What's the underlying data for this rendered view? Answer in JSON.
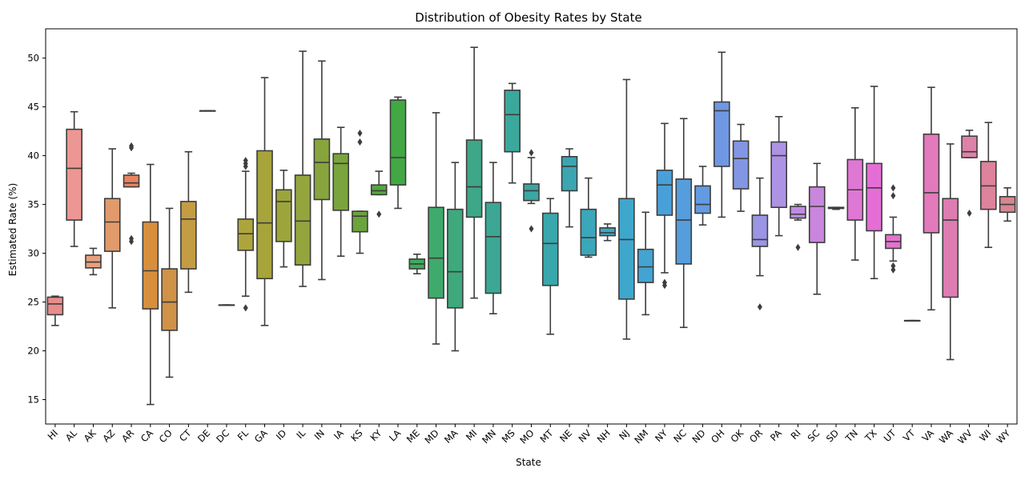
{
  "chart_data": {
    "type": "box",
    "title": "Distribution of Obesity Rates by State",
    "xlabel": "State",
    "ylabel": "Estimated Rate (%)",
    "ylim": [
      12.5,
      53
    ],
    "yticks": [
      15,
      20,
      25,
      30,
      35,
      40,
      45,
      50
    ],
    "grid": false,
    "categories": [
      "HI",
      "AL",
      "AK",
      "AZ",
      "AR",
      "CA",
      "CO",
      "CT",
      "DE",
      "DC",
      "FL",
      "GA",
      "ID",
      "IL",
      "IN",
      "IA",
      "KS",
      "KY",
      "LA",
      "ME",
      "MD",
      "MA",
      "MI",
      "MN",
      "MS",
      "MO",
      "MT",
      "NE",
      "NV",
      "NH",
      "NJ",
      "NM",
      "NY",
      "NC",
      "ND",
      "OH",
      "OK",
      "OR",
      "PA",
      "RI",
      "SC",
      "SD",
      "TN",
      "TX",
      "UT",
      "VT",
      "VA",
      "WA",
      "WV",
      "WI",
      "WY"
    ],
    "colors": [
      "#e98d8c",
      "#ec9793",
      "#e7a07d",
      "#e19b6b",
      "#e8845f",
      "#d88f3c",
      "#cf9247",
      "#c49c44",
      "#bea141",
      "#b6a33c",
      "#aea53a",
      "#a6a43b",
      "#9ca53b",
      "#93a53c",
      "#88a43c",
      "#7aa43d",
      "#6aa43d",
      "#55a740",
      "#42a844",
      "#3daa5a",
      "#3eaa6b",
      "#3da97c",
      "#3ea788",
      "#3ca794",
      "#3ba89c",
      "#3aa7a3",
      "#39a7ab",
      "#3ba6b2",
      "#3ba7ba",
      "#3da7c4",
      "#3fa7cc",
      "#43a3d2",
      "#49a0d8",
      "#559ddd",
      "#639ae2",
      "#7097e3",
      "#8296e3",
      "#9a96e5",
      "#ae93e4",
      "#be8de2",
      "#c986dd",
      "#d57fd9",
      "#df78d4",
      "#e46ed6",
      "#e273cf",
      "#e277c4",
      "#e27abc",
      "#dd7db1",
      "#de81a8",
      "#dd839c",
      "#d78693"
    ],
    "series": [
      {
        "name": "HI",
        "stats": [
          22.6,
          23.7,
          24.8,
          25.5,
          25.6
        ],
        "outliers": []
      },
      {
        "name": "AL",
        "stats": [
          30.7,
          33.4,
          38.7,
          42.7,
          44.5
        ],
        "outliers": []
      },
      {
        "name": "AK",
        "stats": [
          27.8,
          28.5,
          29.1,
          29.8,
          30.5
        ],
        "outliers": []
      },
      {
        "name": "AZ",
        "stats": [
          24.4,
          30.2,
          33.2,
          35.6,
          40.7
        ],
        "outliers": []
      },
      {
        "name": "AR",
        "stats": [
          36.8,
          36.8,
          37.2,
          38.0,
          38.2
        ],
        "outliers": [
          41.0,
          40.8,
          31.5,
          31.2
        ]
      },
      {
        "name": "CA",
        "stats": [
          14.5,
          24.3,
          28.2,
          33.2,
          39.1
        ],
        "outliers": []
      },
      {
        "name": "CO",
        "stats": [
          17.3,
          22.1,
          25.0,
          28.4,
          34.6
        ],
        "outliers": []
      },
      {
        "name": "CT",
        "stats": [
          26.0,
          28.4,
          33.5,
          35.3,
          40.4
        ],
        "outliers": []
      },
      {
        "name": "DE",
        "stats": [
          44.6,
          44.6,
          44.6,
          44.6,
          44.6
        ],
        "outliers": []
      },
      {
        "name": "DC",
        "stats": [
          24.7,
          24.7,
          24.7,
          24.7,
          24.7
        ],
        "outliers": []
      },
      {
        "name": "FL",
        "stats": [
          25.6,
          30.3,
          32.0,
          33.5,
          38.4
        ],
        "outliers": [
          39.5,
          39.2,
          38.9,
          24.4
        ]
      },
      {
        "name": "GA",
        "stats": [
          22.6,
          27.4,
          33.1,
          40.5,
          48.0
        ],
        "outliers": []
      },
      {
        "name": "ID",
        "stats": [
          28.6,
          31.2,
          35.3,
          36.5,
          38.5
        ],
        "outliers": []
      },
      {
        "name": "IL",
        "stats": [
          26.6,
          28.8,
          33.3,
          38.0,
          50.7
        ],
        "outliers": []
      },
      {
        "name": "IN",
        "stats": [
          27.3,
          35.5,
          39.3,
          41.7,
          49.7
        ],
        "outliers": []
      },
      {
        "name": "IA",
        "stats": [
          29.7,
          34.4,
          39.2,
          40.2,
          42.9
        ],
        "outliers": []
      },
      {
        "name": "KS",
        "stats": [
          30.0,
          32.2,
          33.8,
          34.3,
          34.3
        ],
        "outliers": [
          42.3,
          41.4
        ]
      },
      {
        "name": "KY",
        "stats": [
          36.0,
          36.0,
          36.4,
          37.0,
          38.4
        ],
        "outliers": [
          34.0
        ]
      },
      {
        "name": "LA",
        "stats": [
          34.6,
          37.0,
          39.8,
          45.7,
          46.0
        ],
        "outliers": []
      },
      {
        "name": "ME",
        "stats": [
          27.9,
          28.4,
          28.9,
          29.4,
          29.9
        ],
        "outliers": []
      },
      {
        "name": "MD",
        "stats": [
          20.7,
          25.4,
          29.5,
          34.7,
          44.4
        ],
        "outliers": []
      },
      {
        "name": "MA",
        "stats": [
          20.0,
          24.4,
          28.1,
          34.5,
          39.3
        ],
        "outliers": []
      },
      {
        "name": "MI",
        "stats": [
          25.4,
          33.7,
          36.8,
          41.6,
          51.1
        ],
        "outliers": []
      },
      {
        "name": "MN",
        "stats": [
          23.8,
          25.9,
          31.7,
          35.2,
          39.3
        ],
        "outliers": []
      },
      {
        "name": "MS",
        "stats": [
          37.2,
          40.4,
          44.2,
          46.7,
          47.4
        ],
        "outliers": []
      },
      {
        "name": "MO",
        "stats": [
          35.1,
          35.4,
          36.4,
          37.1,
          39.8
        ],
        "outliers": [
          40.3,
          32.5
        ]
      },
      {
        "name": "MT",
        "stats": [
          21.7,
          26.7,
          31.0,
          34.1,
          35.6
        ],
        "outliers": []
      },
      {
        "name": "NE",
        "stats": [
          32.7,
          36.4,
          38.9,
          39.9,
          40.7
        ],
        "outliers": []
      },
      {
        "name": "NV",
        "stats": [
          29.6,
          29.8,
          31.6,
          34.5,
          37.7
        ],
        "outliers": []
      },
      {
        "name": "NH",
        "stats": [
          31.3,
          31.8,
          32.1,
          32.6,
          33.0
        ],
        "outliers": []
      },
      {
        "name": "NJ",
        "stats": [
          21.2,
          25.3,
          31.4,
          35.6,
          47.8
        ],
        "outliers": []
      },
      {
        "name": "NM",
        "stats": [
          23.7,
          27.0,
          28.6,
          30.4,
          34.2
        ],
        "outliers": []
      },
      {
        "name": "NY",
        "stats": [
          28.0,
          33.9,
          37.0,
          38.5,
          43.3
        ],
        "outliers": [
          27.0,
          26.7
        ]
      },
      {
        "name": "NC",
        "stats": [
          22.4,
          28.9,
          33.4,
          37.6,
          43.8
        ],
        "outliers": []
      },
      {
        "name": "ND",
        "stats": [
          32.9,
          34.1,
          35.0,
          36.9,
          38.9
        ],
        "outliers": []
      },
      {
        "name": "OH",
        "stats": [
          33.7,
          38.9,
          44.6,
          45.5,
          50.6
        ],
        "outliers": []
      },
      {
        "name": "OK",
        "stats": [
          34.3,
          36.6,
          39.7,
          41.5,
          43.2
        ],
        "outliers": []
      },
      {
        "name": "OR",
        "stats": [
          27.7,
          30.7,
          31.4,
          33.9,
          37.7
        ],
        "outliers": [
          24.5
        ]
      },
      {
        "name": "PA",
        "stats": [
          31.8,
          34.7,
          40.0,
          41.4,
          44.0
        ],
        "outliers": []
      },
      {
        "name": "RI",
        "stats": [
          33.4,
          33.6,
          34.0,
          34.8,
          35.0
        ],
        "outliers": [
          30.6
        ]
      },
      {
        "name": "SC",
        "stats": [
          25.8,
          31.1,
          34.8,
          36.8,
          39.2
        ],
        "outliers": []
      },
      {
        "name": "SD",
        "stats": [
          34.5,
          34.6,
          34.6,
          34.7,
          34.7
        ],
        "outliers": []
      },
      {
        "name": "TN",
        "stats": [
          29.3,
          33.4,
          36.5,
          39.6,
          44.9
        ],
        "outliers": []
      },
      {
        "name": "TX",
        "stats": [
          27.4,
          32.3,
          36.7,
          39.2,
          47.1
        ],
        "outliers": []
      },
      {
        "name": "UT",
        "stats": [
          29.2,
          30.5,
          31.2,
          31.9,
          33.7
        ],
        "outliers": [
          36.7,
          35.9,
          28.7,
          28.3
        ]
      },
      {
        "name": "VT",
        "stats": [
          23.1,
          23.1,
          23.1,
          23.1,
          23.1
        ],
        "outliers": []
      },
      {
        "name": "VA",
        "stats": [
          24.2,
          32.1,
          36.2,
          42.2,
          47.0
        ],
        "outliers": []
      },
      {
        "name": "WA",
        "stats": [
          19.1,
          25.5,
          33.4,
          35.6,
          41.2
        ],
        "outliers": []
      },
      {
        "name": "WV",
        "stats": [
          39.8,
          39.8,
          40.4,
          42.0,
          42.6
        ],
        "outliers": [
          34.1
        ]
      },
      {
        "name": "WI",
        "stats": [
          30.6,
          34.5,
          36.9,
          39.4,
          43.4
        ],
        "outliers": []
      },
      {
        "name": "WY",
        "stats": [
          33.3,
          34.2,
          35.0,
          35.8,
          36.7
        ],
        "outliers": []
      }
    ]
  }
}
